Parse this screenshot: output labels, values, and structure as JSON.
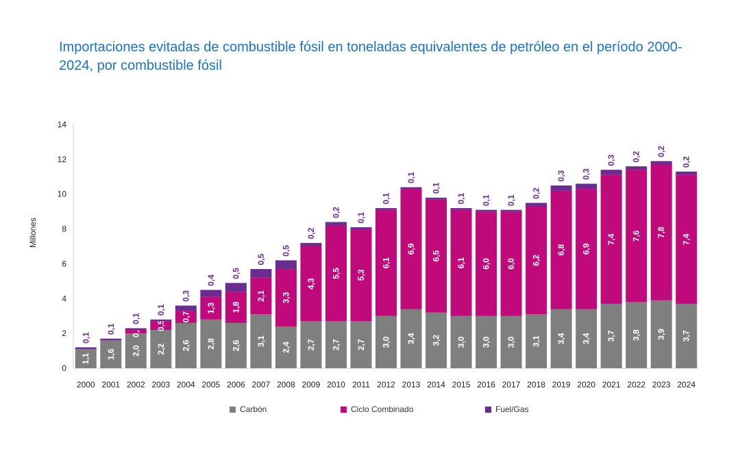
{
  "title": "Importaciones evitadas de combustible fósil en toneladas equivalentes de petróleo en el período 2000-2024, por combustible fósil",
  "chart_data": {
    "type": "bar",
    "stacked": true,
    "title": "Importaciones evitadas de combustible fósil en toneladas equivalentes de petróleo en el período 2000-2024, por combustible fósil",
    "xlabel": "",
    "ylabel": "Millones",
    "ylim": [
      0,
      14
    ],
    "yticks": [
      0,
      2,
      4,
      6,
      8,
      10,
      12,
      14
    ],
    "grid": false,
    "legend_position": "bottom",
    "categories": [
      "2000",
      "2001",
      "2002",
      "2003",
      "2004",
      "2005",
      "2006",
      "2007",
      "2008",
      "2009",
      "2010",
      "2011",
      "2012",
      "2013",
      "2014",
      "2015",
      "2016",
      "2017",
      "2018",
      "2019",
      "2020",
      "2021",
      "2022",
      "2023",
      "2024"
    ],
    "series": [
      {
        "name": "Carbón",
        "color": "#7f7f7f",
        "values": [
          1.1,
          1.6,
          2.0,
          2.2,
          2.6,
          2.8,
          2.6,
          3.1,
          2.4,
          2.7,
          2.7,
          2.7,
          3.0,
          3.4,
          3.2,
          3.0,
          3.0,
          3.0,
          3.1,
          3.4,
          3.4,
          3.7,
          3.8,
          3.9,
          3.7
        ],
        "labels": [
          "1,1",
          "1,6",
          "2,0",
          "2,2",
          "2,6",
          "2,8",
          "2,6",
          "3,1",
          "2,4",
          "2,7",
          "2,7",
          "2,7",
          "3,0",
          "3,4",
          "3,2",
          "3,0",
          "3,0",
          "3,0",
          "3,1",
          "3,4",
          "3,4",
          "3,7",
          "3,8",
          "3,9",
          "3,7"
        ]
      },
      {
        "name": "Ciclo Combinado",
        "color": "#c0097a",
        "values": [
          0.0,
          0.0,
          0.2,
          0.5,
          0.7,
          1.3,
          1.8,
          2.1,
          3.3,
          4.3,
          5.5,
          5.3,
          6.1,
          6.9,
          6.5,
          6.1,
          6.0,
          6.0,
          6.2,
          6.8,
          6.9,
          7.4,
          7.6,
          7.8,
          7.4
        ],
        "labels": [
          "",
          "",
          "0,2",
          "0,5",
          "0,7",
          "1,3",
          "1,8",
          "2,1",
          "3,3",
          "4,3",
          "5,5",
          "5,3",
          "6,1",
          "6,9",
          "6,5",
          "6,1",
          "6,0",
          "6,0",
          "6,2",
          "6,8",
          "6,9",
          "7,4",
          "7,6",
          "7,8",
          "7,4"
        ]
      },
      {
        "name": "Fuel/Gas",
        "color": "#6a2c91",
        "values": [
          0.1,
          0.1,
          0.1,
          0.1,
          0.3,
          0.4,
          0.5,
          0.5,
          0.5,
          0.2,
          0.2,
          0.1,
          0.1,
          0.1,
          0.1,
          0.1,
          0.1,
          0.1,
          0.2,
          0.3,
          0.3,
          0.3,
          0.2,
          0.2,
          0.2
        ],
        "labels": [
          "0,1",
          "0,1",
          "0,1",
          "0,1",
          "0,3",
          "0,4",
          "0,5",
          "0,5",
          "0,5",
          "0,2",
          "0,2",
          "0,1",
          "0,1",
          "0,1",
          "0,1",
          "0,1",
          "0,1",
          "0,1",
          "0,2",
          "0,3",
          "0,3",
          "0,3",
          "0,2",
          "0,2",
          "0,2"
        ]
      }
    ]
  }
}
